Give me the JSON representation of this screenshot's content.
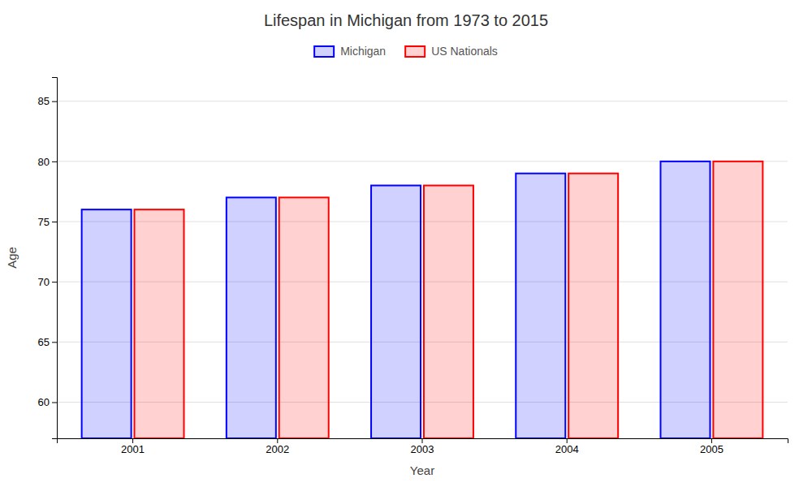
{
  "chart_data": {
    "type": "bar",
    "title": "Lifespan in Michigan from 1973 to 2015",
    "xlabel": "Year",
    "ylabel": "Age",
    "categories": [
      "2001",
      "2002",
      "2003",
      "2004",
      "2005"
    ],
    "series": [
      {
        "name": "Michigan",
        "color": "#0000ff",
        "values": [
          76,
          77,
          78,
          79,
          80
        ]
      },
      {
        "name": "US Nationals",
        "color": "#ff0000",
        "values": [
          76,
          77,
          78,
          79,
          80
        ]
      }
    ],
    "ylim": [
      57,
      87
    ],
    "yticks": [
      60,
      65,
      70,
      75,
      80,
      85
    ],
    "grid": true,
    "legend": "top"
  }
}
